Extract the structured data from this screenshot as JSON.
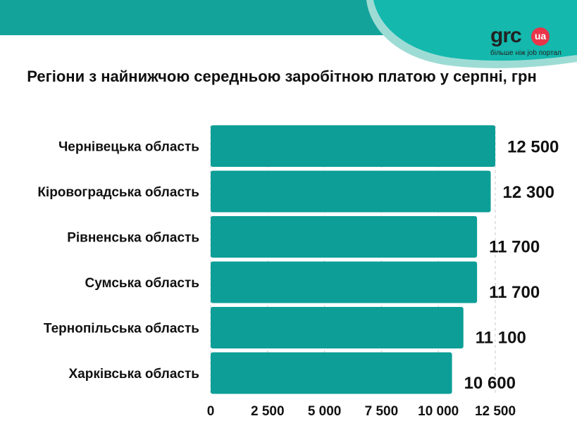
{
  "header": {
    "logo_text": "grc",
    "logo_badge": "ua",
    "tagline": "більше ніж job портал"
  },
  "colors": {
    "band": "#14a39a",
    "bar": "#0c9e97",
    "grid": "#c8c8c8",
    "text": "#111111",
    "badge": "#e8354a"
  },
  "chart_data": {
    "type": "bar",
    "orientation": "horizontal",
    "title": "Регіони з найнижчою середньою заробітною платою у серпні, грн",
    "categories": [
      "Чернівецька область",
      "Кіровоградська область",
      "Рівненська область",
      "Сумська область",
      "Тернопільська область",
      "Харківська область"
    ],
    "values": [
      12500,
      12300,
      11700,
      11700,
      11100,
      10600
    ],
    "value_labels": [
      "12 500",
      "12 300",
      "11 700",
      "11 700",
      "11 100",
      "10 600"
    ],
    "xlim": [
      0,
      12500
    ],
    "ticks": [
      0,
      2500,
      5000,
      7500,
      10000,
      12500
    ],
    "tick_labels": [
      "0",
      "2 500",
      "5 000",
      "7 500",
      "10 000",
      "12 500"
    ],
    "grid": true,
    "legend": "none"
  }
}
